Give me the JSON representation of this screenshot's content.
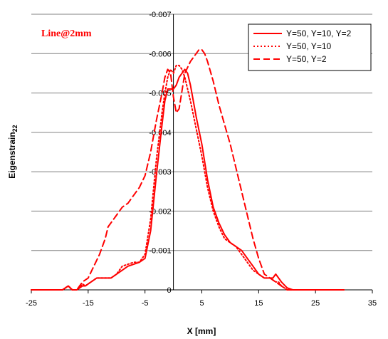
{
  "chart_data": {
    "type": "line",
    "annotation": "Line@2mm",
    "xlabel": "X [mm]",
    "ylabel": "Eigenstrain",
    "ylabel_sub": "22",
    "xlim": [
      -25,
      35
    ],
    "ylim": [
      -0.007,
      0
    ],
    "x_ticks": [
      "-25",
      "-15",
      "-5",
      "5",
      "15",
      "25",
      "35"
    ],
    "y_ticks": [
      "-0.007",
      "-0.006",
      "-0.005",
      "-0.004",
      "-0.003",
      "-0.002",
      "-0.001",
      "0"
    ],
    "grid": "horizontal",
    "legend_position": "top-right",
    "colors": {
      "series": "#ff0000",
      "grid": "#808080",
      "axis": "#000000"
    },
    "series": [
      {
        "name": "Y=50,  Y=10,  Y=2",
        "dash": "solid",
        "x": [
          -25,
          -19.5,
          -18.5,
          -17.8,
          -17,
          -16,
          -15.5,
          -14.5,
          -13.5,
          -12.5,
          -11,
          -10,
          -9,
          -8,
          -7,
          -6,
          -5,
          -4,
          -3,
          -2,
          -1.5,
          -1,
          -0.5,
          0,
          0.5,
          1,
          1.5,
          2,
          2.5,
          3,
          3.5,
          4,
          5,
          6,
          7,
          8,
          9,
          10,
          11,
          12,
          13,
          14,
          15,
          16,
          17,
          17.5,
          18,
          18.5,
          19,
          20,
          21,
          30
        ],
        "y": [
          0,
          0,
          -0.0001,
          0,
          0,
          -0.0001,
          -0.0001,
          -0.0002,
          -0.0003,
          -0.0003,
          -0.0003,
          -0.0004,
          -0.0005,
          -0.0006,
          -0.00065,
          -0.0007,
          -0.0008,
          -0.0015,
          -0.0029,
          -0.0042,
          -0.0048,
          -0.0051,
          -0.0051,
          -0.0051,
          -0.0052,
          -0.0054,
          -0.0055,
          -0.0056,
          -0.0055,
          -0.0052,
          -0.0048,
          -0.0044,
          -0.0037,
          -0.0028,
          -0.0021,
          -0.0017,
          -0.0014,
          -0.0012,
          -0.0011,
          -0.001,
          -0.0008,
          -0.0006,
          -0.0004,
          -0.0003,
          -0.0003,
          -0.0003,
          -0.0004,
          -0.0003,
          -0.0002,
          -5e-05,
          0,
          0
        ]
      },
      {
        "name": "Y=50,  Y=10",
        "dash": "dotted",
        "x": [
          -25,
          -19.5,
          -18.5,
          -17.8,
          -17,
          -16,
          -15.5,
          -14.5,
          -13.5,
          -12.5,
          -11,
          -10,
          -9,
          -8,
          -7,
          -6,
          -5,
          -4,
          -3,
          -2,
          -1.5,
          -1,
          -0.5,
          0,
          0.5,
          1,
          1.5,
          2,
          2.5,
          3,
          4,
          5,
          6,
          7,
          8,
          9,
          10,
          11,
          12,
          13,
          14,
          15,
          16,
          17,
          18,
          18.5,
          19,
          20,
          30
        ],
        "y": [
          0,
          0,
          -0.0001,
          0,
          0,
          -0.00015,
          -0.0001,
          -0.0002,
          -0.0003,
          -0.0003,
          -0.0003,
          -0.0004,
          -0.0006,
          -0.00065,
          -0.0007,
          -0.0007,
          -0.0009,
          -0.0018,
          -0.0033,
          -0.0045,
          -0.005,
          -0.0054,
          -0.0056,
          -0.0055,
          -0.0057,
          -0.0057,
          -0.0056,
          -0.0054,
          -0.0051,
          -0.0048,
          -0.0041,
          -0.0034,
          -0.0026,
          -0.002,
          -0.0016,
          -0.0013,
          -0.0012,
          -0.0011,
          -0.0009,
          -0.0007,
          -0.0005,
          -0.0004,
          -0.0003,
          -0.0003,
          -0.0002,
          -0.0002,
          -0.0001,
          0,
          0
        ]
      },
      {
        "name": "Y=50,  Y=2",
        "dash": "dashed",
        "x": [
          -25,
          -19.5,
          -18.5,
          -17.8,
          -17,
          -16,
          -15,
          -14,
          -13,
          -12,
          -11.5,
          -11,
          -10,
          -9,
          -8,
          -7,
          -6,
          -5,
          -4,
          -3,
          -2,
          -1.5,
          -1,
          -0.5,
          0,
          0.5,
          1,
          2,
          3,
          3.5,
          4,
          4.5,
          5,
          5.5,
          6,
          7,
          8,
          9,
          10,
          11,
          12,
          13,
          14,
          15,
          16,
          17,
          18,
          19,
          20,
          30
        ],
        "y": [
          0,
          0,
          -0.0001,
          0,
          0,
          -0.0002,
          -0.0003,
          -0.0006,
          -0.0009,
          -0.0013,
          -0.0016,
          -0.0017,
          -0.0019,
          -0.0021,
          -0.0022,
          -0.0024,
          -0.0026,
          -0.0029,
          -0.0035,
          -0.0043,
          -0.005,
          -0.0054,
          -0.0056,
          -0.0055,
          -0.0049,
          -0.0045,
          -0.0046,
          -0.0055,
          -0.0058,
          -0.0059,
          -0.006,
          -0.0061,
          -0.0061,
          -0.006,
          -0.0058,
          -0.0053,
          -0.0047,
          -0.0042,
          -0.0037,
          -0.0031,
          -0.0025,
          -0.0019,
          -0.0013,
          -0.0008,
          -0.0004,
          -0.0003,
          -0.0002,
          -0.0001,
          0,
          0
        ]
      }
    ]
  }
}
